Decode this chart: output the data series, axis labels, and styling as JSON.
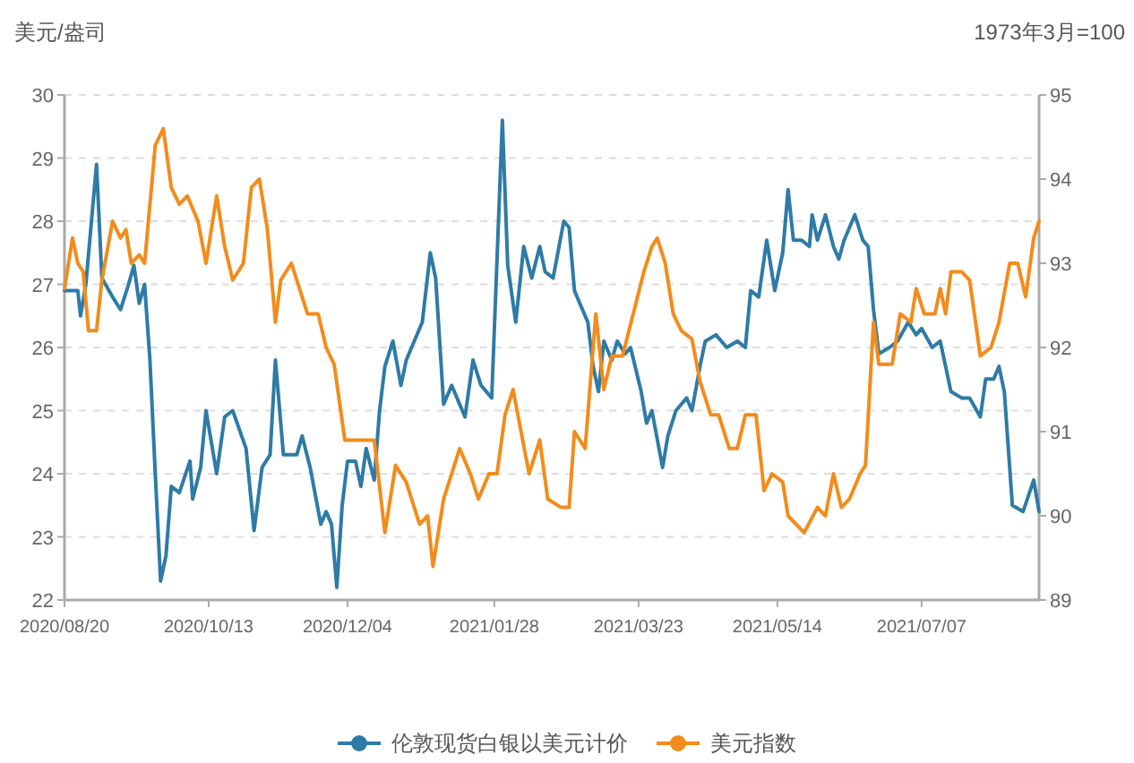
{
  "chart_data": {
    "type": "line",
    "ylabel": "美元/盎司",
    "y2label": "1973年3月=100",
    "xlim": [
      "2020-08-20",
      "2021-08-20"
    ],
    "xticks": [
      {
        "value": "2020-08-20",
        "label": "2020/08/20"
      },
      {
        "value": "2020-10-13",
        "label": "2020/10/13"
      },
      {
        "value": "2020-12-04",
        "label": "2020/12/04"
      },
      {
        "value": "2021-01-28",
        "label": "2021/01/28"
      },
      {
        "value": "2021-03-23",
        "label": "2021/03/23"
      },
      {
        "value": "2021-05-14",
        "label": "2021/05/14"
      },
      {
        "value": "2021-07-07",
        "label": "2021/07/07"
      }
    ],
    "ylim": [
      22,
      30
    ],
    "yticks": [
      22,
      23,
      24,
      25,
      26,
      27,
      28,
      29,
      30
    ],
    "y2lim": [
      89,
      95
    ],
    "y2ticks": [
      89,
      90,
      91,
      92,
      93,
      94,
      95
    ],
    "grid": "y",
    "legend": "bottom",
    "series": [
      {
        "name": "伦敦现货白银以美元计价",
        "color": "#2e7ba6",
        "axis": "y",
        "x": [
          "2020-08-20",
          "2020-08-25",
          "2020-08-26",
          "2020-08-28",
          "2020-09-01",
          "2020-09-03",
          "2020-09-07",
          "2020-09-10",
          "2020-09-13",
          "2020-09-15",
          "2020-09-17",
          "2020-09-19",
          "2020-09-21",
          "2020-09-23",
          "2020-09-25",
          "2020-09-27",
          "2020-09-29",
          "2020-10-02",
          "2020-10-06",
          "2020-10-07",
          "2020-10-10",
          "2020-10-12",
          "2020-10-16",
          "2020-10-19",
          "2020-10-22",
          "2020-10-27",
          "2020-10-30",
          "2020-11-02",
          "2020-11-05",
          "2020-11-07",
          "2020-11-10",
          "2020-11-15",
          "2020-11-17",
          "2020-11-20",
          "2020-11-24",
          "2020-11-26",
          "2020-11-28",
          "2020-11-30",
          "2020-12-02",
          "2020-12-04",
          "2020-12-07",
          "2020-12-09",
          "2020-12-11",
          "2020-12-14",
          "2020-12-16",
          "2020-12-18",
          "2020-12-21",
          "2020-12-24",
          "2020-12-26",
          "2020-12-28",
          "2021-01-01",
          "2021-01-04",
          "2021-01-06",
          "2021-01-09",
          "2021-01-12",
          "2021-01-17",
          "2021-01-20",
          "2021-01-23",
          "2021-01-27",
          "2021-01-31",
          "2021-02-02",
          "2021-02-05",
          "2021-02-08",
          "2021-02-11",
          "2021-02-14",
          "2021-02-16",
          "2021-02-19",
          "2021-02-23",
          "2021-02-25",
          "2021-02-27",
          "2021-03-01",
          "2021-03-04",
          "2021-03-06",
          "2021-03-08",
          "2021-03-10",
          "2021-03-13",
          "2021-03-15",
          "2021-03-18",
          "2021-03-20",
          "2021-03-24",
          "2021-03-26",
          "2021-03-28",
          "2021-04-01",
          "2021-04-03",
          "2021-04-06",
          "2021-04-10",
          "2021-04-12",
          "2021-04-15",
          "2021-04-17",
          "2021-04-21",
          "2021-04-25",
          "2021-04-29",
          "2021-05-02",
          "2021-05-04",
          "2021-05-07",
          "2021-05-10",
          "2021-05-13",
          "2021-05-16",
          "2021-05-18",
          "2021-05-20",
          "2021-05-23",
          "2021-05-26",
          "2021-05-27",
          "2021-05-29",
          "2021-06-01",
          "2021-06-04",
          "2021-06-06",
          "2021-06-08",
          "2021-06-12",
          "2021-06-15",
          "2021-06-17",
          "2021-06-19",
          "2021-06-21",
          "2021-06-25",
          "2021-06-28",
          "2021-07-02",
          "2021-07-05",
          "2021-07-07",
          "2021-07-11",
          "2021-07-14",
          "2021-07-18",
          "2021-07-22",
          "2021-07-25",
          "2021-07-29",
          "2021-07-31",
          "2021-08-03",
          "2021-08-05",
          "2021-08-07",
          "2021-08-10",
          "2021-08-14",
          "2021-08-18",
          "2021-08-20"
        ],
        "values": [
          26.9,
          26.9,
          26.5,
          27.0,
          28.9,
          27.1,
          26.8,
          26.6,
          27.0,
          27.3,
          26.7,
          27.0,
          25.8,
          24.0,
          22.3,
          22.7,
          23.8,
          23.7,
          24.2,
          23.6,
          24.1,
          25.0,
          24.0,
          24.9,
          25.0,
          24.4,
          23.1,
          24.1,
          24.3,
          25.8,
          24.3,
          24.3,
          24.6,
          24.1,
          23.2,
          23.4,
          23.2,
          22.2,
          23.5,
          24.2,
          24.2,
          23.8,
          24.4,
          23.9,
          25.0,
          25.7,
          26.1,
          25.4,
          25.8,
          26.0,
          26.4,
          27.5,
          27.1,
          25.1,
          25.4,
          24.9,
          25.8,
          25.4,
          25.2,
          29.6,
          27.3,
          26.4,
          27.6,
          27.1,
          27.6,
          27.2,
          27.1,
          28.0,
          27.9,
          26.9,
          26.7,
          26.4,
          25.7,
          25.3,
          26.1,
          25.8,
          26.1,
          25.9,
          26.0,
          25.3,
          24.8,
          25.0,
          24.1,
          24.6,
          25.0,
          25.2,
          25.0,
          25.7,
          26.1,
          26.2,
          26.0,
          26.1,
          26.0,
          26.9,
          26.8,
          27.7,
          26.9,
          27.5,
          28.5,
          27.7,
          27.7,
          27.6,
          28.1,
          27.7,
          28.1,
          27.6,
          27.4,
          27.7,
          28.1,
          27.7,
          27.6,
          26.6,
          25.9,
          26.0,
          26.1,
          26.4,
          26.2,
          26.3,
          26.0,
          26.1,
          25.3,
          25.2,
          25.2,
          24.9,
          25.5,
          25.5,
          25.7,
          25.3,
          23.5,
          23.4,
          23.9,
          23.4
        ]
      },
      {
        "name": "美元指数",
        "color": "#f28c1c",
        "axis": "y2",
        "x": [
          "2020-08-20",
          "2020-08-23",
          "2020-08-25",
          "2020-08-27",
          "2020-08-29",
          "2020-09-01",
          "2020-09-03",
          "2020-09-07",
          "2020-09-10",
          "2020-09-12",
          "2020-09-14",
          "2020-09-17",
          "2020-09-19",
          "2020-09-23",
          "2020-09-26",
          "2020-09-29",
          "2020-10-02",
          "2020-10-05",
          "2020-10-09",
          "2020-10-12",
          "2020-10-16",
          "2020-10-19",
          "2020-10-22",
          "2020-10-26",
          "2020-10-29",
          "2020-11-01",
          "2020-11-04",
          "2020-11-07",
          "2020-11-09",
          "2020-11-13",
          "2020-11-16",
          "2020-11-19",
          "2020-11-23",
          "2020-11-26",
          "2020-11-29",
          "2020-12-03",
          "2020-12-06",
          "2020-12-09",
          "2020-12-14",
          "2020-12-18",
          "2020-12-22",
          "2020-12-26",
          "2020-12-31",
          "2021-01-03",
          "2021-01-05",
          "2021-01-09",
          "2021-01-12",
          "2021-01-15",
          "2021-01-19",
          "2021-01-22",
          "2021-01-26",
          "2021-01-29",
          "2021-02-01",
          "2021-02-04",
          "2021-02-07",
          "2021-02-10",
          "2021-02-14",
          "2021-02-17",
          "2021-02-22",
          "2021-02-25",
          "2021-02-27",
          "2021-03-03",
          "2021-03-05",
          "2021-03-07",
          "2021-03-10",
          "2021-03-13",
          "2021-03-17",
          "2021-03-21",
          "2021-03-25",
          "2021-03-28",
          "2021-03-30",
          "2021-04-02",
          "2021-04-05",
          "2021-04-08",
          "2021-04-12",
          "2021-04-15",
          "2021-04-19",
          "2021-04-22",
          "2021-04-26",
          "2021-04-29",
          "2021-05-02",
          "2021-05-06",
          "2021-05-09",
          "2021-05-12",
          "2021-05-16",
          "2021-05-18",
          "2021-05-21",
          "2021-05-24",
          "2021-05-29",
          "2021-06-01",
          "2021-06-04",
          "2021-06-07",
          "2021-06-10",
          "2021-06-14",
          "2021-06-16",
          "2021-06-19",
          "2021-06-21",
          "2021-06-26",
          "2021-06-29",
          "2021-07-03",
          "2021-07-05",
          "2021-07-08",
          "2021-07-12",
          "2021-07-14",
          "2021-07-16",
          "2021-07-18",
          "2021-07-22",
          "2021-07-25",
          "2021-07-29",
          "2021-08-02",
          "2021-08-05",
          "2021-08-09",
          "2021-08-12",
          "2021-08-15",
          "2021-08-18",
          "2021-08-20"
        ],
        "values": [
          92.7,
          93.3,
          93.0,
          92.9,
          92.2,
          92.2,
          92.8,
          93.5,
          93.3,
          93.4,
          93.0,
          93.1,
          93.0,
          94.4,
          94.6,
          93.9,
          93.7,
          93.8,
          93.5,
          93.0,
          93.8,
          93.2,
          92.8,
          93.0,
          93.9,
          94.0,
          93.4,
          92.3,
          92.8,
          93.0,
          92.7,
          92.4,
          92.4,
          92.0,
          91.8,
          90.9,
          90.9,
          90.9,
          90.9,
          89.8,
          90.6,
          90.4,
          89.9,
          90.0,
          89.4,
          90.2,
          90.5,
          90.8,
          90.5,
          90.2,
          90.5,
          90.5,
          91.2,
          91.5,
          91.0,
          90.5,
          90.9,
          90.2,
          90.1,
          90.1,
          91.0,
          90.8,
          91.6,
          92.4,
          91.5,
          91.9,
          91.9,
          92.4,
          92.9,
          93.2,
          93.3,
          93.0,
          92.4,
          92.2,
          92.1,
          91.6,
          91.2,
          91.2,
          90.8,
          90.8,
          91.2,
          91.2,
          90.3,
          90.5,
          90.4,
          90.0,
          89.9,
          89.8,
          90.1,
          90.0,
          90.5,
          90.1,
          90.2,
          90.5,
          90.6,
          92.3,
          91.8,
          91.8,
          92.4,
          92.3,
          92.7,
          92.4,
          92.4,
          92.7,
          92.4,
          92.9,
          92.9,
          92.8,
          91.9,
          92.0,
          92.3,
          93.0,
          93.0,
          92.6,
          93.3,
          93.5
        ]
      }
    ]
  }
}
